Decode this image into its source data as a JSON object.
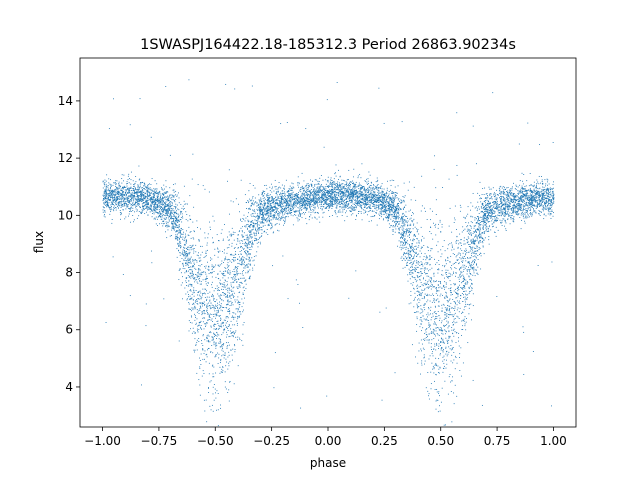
{
  "chart_data": {
    "type": "scatter",
    "title": "1SWASPJ164422.18-185312.3 Period 26863.90234s",
    "xlabel": "phase",
    "ylabel": "flux",
    "xlim": [
      -1.1,
      1.1
    ],
    "ylim": [
      2.6,
      15.5
    ],
    "xticks": [
      -1.0,
      -0.75,
      -0.5,
      -0.25,
      0.0,
      0.25,
      0.5,
      0.75,
      1.0
    ],
    "xtick_labels": [
      "−1.00",
      "−0.75",
      "−0.50",
      "−0.25",
      "0.00",
      "0.25",
      "0.50",
      "0.75",
      "1.00"
    ],
    "yticks": [
      4,
      6,
      8,
      10,
      12,
      14
    ],
    "ytick_labels": [
      "4",
      "6",
      "8",
      "10",
      "12",
      "14"
    ],
    "grid": false,
    "marker_color": "#1f77b4",
    "light_curve": {
      "description_of_shape": "phase-folded eclipsing binary light curve, symmetric about phase 0",
      "x": [
        -1.0,
        -0.9,
        -0.8,
        -0.75,
        -0.7,
        -0.65,
        -0.6,
        -0.55,
        -0.5,
        -0.45,
        -0.4,
        -0.35,
        -0.3,
        -0.25,
        -0.2,
        -0.1,
        0.0,
        0.1,
        0.2,
        0.25,
        0.3,
        0.35,
        0.4,
        0.45,
        0.5,
        0.55,
        0.6,
        0.65,
        0.7,
        0.75,
        0.8,
        0.9,
        1.0
      ],
      "y": [
        10.6,
        10.7,
        10.6,
        10.4,
        10.2,
        9.2,
        7.8,
        6.8,
        6.4,
        6.8,
        7.8,
        9.2,
        10.1,
        10.3,
        10.4,
        10.6,
        10.7,
        10.7,
        10.6,
        10.4,
        10.2,
        9.2,
        7.8,
        6.8,
        6.4,
        6.8,
        7.8,
        9.2,
        10.1,
        10.3,
        10.4,
        10.6,
        10.6
      ]
    },
    "n_points": 9000
  }
}
